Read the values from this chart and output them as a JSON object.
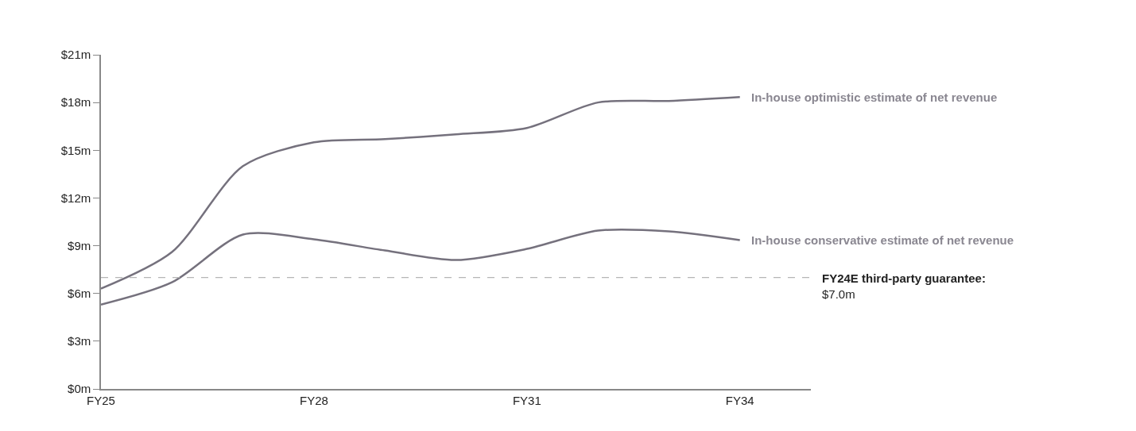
{
  "chart_data": {
    "type": "line",
    "categories": [
      "FY25",
      null,
      null,
      "FY28",
      null,
      null,
      "FY31",
      null,
      null,
      "FY34"
    ],
    "series": [
      {
        "name": "In-house optimistic estimate of net revenue",
        "color": "#75717d",
        "values": [
          6.3,
          8.6,
          14.0,
          15.5,
          15.7,
          16.0,
          16.4,
          18.0,
          18.1,
          18.35
        ]
      },
      {
        "name": "In-house conservative estimate of net revenue",
        "color": "#75717d",
        "values": [
          5.3,
          6.7,
          9.7,
          9.4,
          8.7,
          8.1,
          8.8,
          9.95,
          9.9,
          9.35
        ]
      }
    ],
    "ylim": [
      0,
      21
    ],
    "yticks": [
      {
        "value": 0,
        "label": "$0m"
      },
      {
        "value": 3,
        "label": "$3m"
      },
      {
        "value": 6,
        "label": "$6m"
      },
      {
        "value": 9,
        "label": "$9m"
      },
      {
        "value": 12,
        "label": "$12m"
      },
      {
        "value": 15,
        "label": "$15m"
      },
      {
        "value": 18,
        "label": "$18m"
      },
      {
        "value": 21,
        "label": "$21m"
      }
    ],
    "ref_lines": [
      {
        "axis": "y",
        "value": 7.0,
        "label": "FY24E third-party guarantee:\n$7.0m",
        "color": "#b5b5b5",
        "line_style": "dashed"
      }
    ],
    "legend": false,
    "marker": "none",
    "line_style": "solid"
  }
}
